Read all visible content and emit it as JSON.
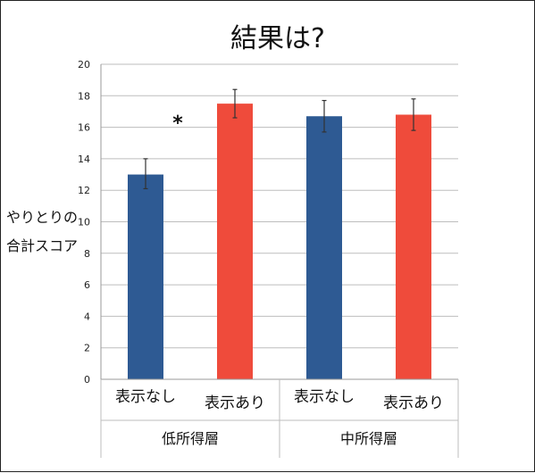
{
  "chart_data": {
    "type": "bar",
    "title": "結果は?",
    "ylabel_lines": [
      "やりとりの",
      "合計スコア"
    ],
    "ylim": [
      0,
      20
    ],
    "yticks": [
      0,
      2,
      4,
      6,
      8,
      10,
      12,
      14,
      16,
      18,
      20
    ],
    "grid": true,
    "categories": [
      "表示なし",
      "表示あり",
      "表示なし",
      "表示あり"
    ],
    "groups": [
      {
        "label": "低所得層",
        "categories": [
          "表示なし",
          "表示あり"
        ]
      },
      {
        "label": "中所得層",
        "categories": [
          "表示なし",
          "表示あり"
        ]
      }
    ],
    "values": [
      13.0,
      17.5,
      16.7,
      16.8
    ],
    "error_bars": [
      [
        12.1,
        14.0
      ],
      [
        16.6,
        18.4
      ],
      [
        15.7,
        17.7
      ],
      [
        15.8,
        17.8
      ]
    ],
    "bar_colors": [
      "#2E5A93",
      "#EF4B3B",
      "#2E5A93",
      "#EF4B3B"
    ],
    "annotation": "*"
  }
}
